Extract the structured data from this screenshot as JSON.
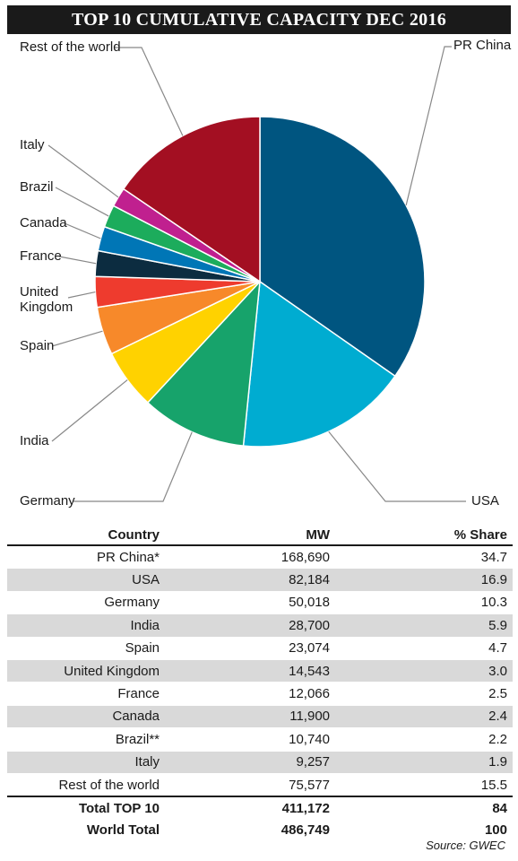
{
  "chart_data": {
    "type": "pie",
    "title": "TOP 10 CUMULATIVE CAPACITY DEC 2016",
    "slices": [
      {
        "label": "PR China",
        "value": 34.7,
        "color": "#005580"
      },
      {
        "label": "USA",
        "value": 16.9,
        "color": "#00acd1"
      },
      {
        "label": "Germany",
        "value": 10.3,
        "color": "#17a36b"
      },
      {
        "label": "India",
        "value": 5.9,
        "color": "#ffd200"
      },
      {
        "label": "Spain",
        "value": 4.7,
        "color": "#f7892a"
      },
      {
        "label": "United Kingdom",
        "value": 3.0,
        "color": "#ee3b2e"
      },
      {
        "label": "France",
        "value": 2.5,
        "color": "#0c2c40"
      },
      {
        "label": "Canada",
        "value": 2.4,
        "color": "#0076b6"
      },
      {
        "label": "Brazil",
        "value": 2.2,
        "color": "#1cac5c"
      },
      {
        "label": "Italy",
        "value": 1.9,
        "color": "#c0208f"
      },
      {
        "label": "Rest of the world",
        "value": 15.5,
        "color": "#a30f22"
      }
    ]
  },
  "table": {
    "headers": {
      "country": "Country",
      "mw": "MW",
      "share": "% Share"
    },
    "rows": [
      {
        "country": "PR China*",
        "mw": "168,690",
        "share": "34.7"
      },
      {
        "country": "USA",
        "mw": "82,184",
        "share": "16.9"
      },
      {
        "country": "Germany",
        "mw": "50,018",
        "share": "10.3"
      },
      {
        "country": "India",
        "mw": "28,700",
        "share": "5.9"
      },
      {
        "country": "Spain",
        "mw": "23,074",
        "share": "4.7"
      },
      {
        "country": "United Kingdom",
        "mw": "14,543",
        "share": "3.0"
      },
      {
        "country": "France",
        "mw": "12,066",
        "share": "2.5"
      },
      {
        "country": "Canada",
        "mw": "11,900",
        "share": "2.4"
      },
      {
        "country": "Brazil**",
        "mw": "10,740",
        "share": "2.2"
      },
      {
        "country": "Italy",
        "mw": "9,257",
        "share": "1.9"
      },
      {
        "country": "Rest of the world",
        "mw": "75,577",
        "share": "15.5"
      }
    ],
    "totals": [
      {
        "country": "Total TOP 10",
        "mw": "411,172",
        "share": "84"
      },
      {
        "country": "World Total",
        "mw": "486,749",
        "share": "100"
      }
    ]
  },
  "source": "Source: GWEC"
}
